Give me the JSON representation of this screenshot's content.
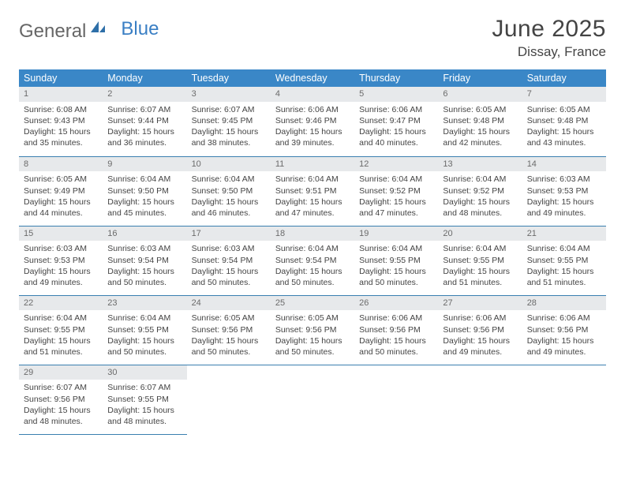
{
  "logo": {
    "part1": "General",
    "part2": "Blue"
  },
  "title": "June 2025",
  "location": "Dissay, France",
  "colors": {
    "header_bg": "#3a87c7",
    "header_fg": "#ffffff",
    "daynum_bg": "#e7e9eb",
    "daynum_fg": "#6b6b6b",
    "rule": "#3a7fb0",
    "text": "#444444",
    "logo_gray": "#666666",
    "logo_blue": "#3a7fc4",
    "background": "#ffffff"
  },
  "typography": {
    "title_fontsize": 30,
    "location_fontsize": 17,
    "header_fontsize": 12.5,
    "body_fontsize": 10.5,
    "daynum_fontsize": 11
  },
  "weekdays": [
    "Sunday",
    "Monday",
    "Tuesday",
    "Wednesday",
    "Thursday",
    "Friday",
    "Saturday"
  ],
  "weeks": [
    [
      {
        "n": "1",
        "sr": "Sunrise: 6:08 AM",
        "ss": "Sunset: 9:43 PM",
        "d1": "Daylight: 15 hours",
        "d2": "and 35 minutes."
      },
      {
        "n": "2",
        "sr": "Sunrise: 6:07 AM",
        "ss": "Sunset: 9:44 PM",
        "d1": "Daylight: 15 hours",
        "d2": "and 36 minutes."
      },
      {
        "n": "3",
        "sr": "Sunrise: 6:07 AM",
        "ss": "Sunset: 9:45 PM",
        "d1": "Daylight: 15 hours",
        "d2": "and 38 minutes."
      },
      {
        "n": "4",
        "sr": "Sunrise: 6:06 AM",
        "ss": "Sunset: 9:46 PM",
        "d1": "Daylight: 15 hours",
        "d2": "and 39 minutes."
      },
      {
        "n": "5",
        "sr": "Sunrise: 6:06 AM",
        "ss": "Sunset: 9:47 PM",
        "d1": "Daylight: 15 hours",
        "d2": "and 40 minutes."
      },
      {
        "n": "6",
        "sr": "Sunrise: 6:05 AM",
        "ss": "Sunset: 9:48 PM",
        "d1": "Daylight: 15 hours",
        "d2": "and 42 minutes."
      },
      {
        "n": "7",
        "sr": "Sunrise: 6:05 AM",
        "ss": "Sunset: 9:48 PM",
        "d1": "Daylight: 15 hours",
        "d2": "and 43 minutes."
      }
    ],
    [
      {
        "n": "8",
        "sr": "Sunrise: 6:05 AM",
        "ss": "Sunset: 9:49 PM",
        "d1": "Daylight: 15 hours",
        "d2": "and 44 minutes."
      },
      {
        "n": "9",
        "sr": "Sunrise: 6:04 AM",
        "ss": "Sunset: 9:50 PM",
        "d1": "Daylight: 15 hours",
        "d2": "and 45 minutes."
      },
      {
        "n": "10",
        "sr": "Sunrise: 6:04 AM",
        "ss": "Sunset: 9:50 PM",
        "d1": "Daylight: 15 hours",
        "d2": "and 46 minutes."
      },
      {
        "n": "11",
        "sr": "Sunrise: 6:04 AM",
        "ss": "Sunset: 9:51 PM",
        "d1": "Daylight: 15 hours",
        "d2": "and 47 minutes."
      },
      {
        "n": "12",
        "sr": "Sunrise: 6:04 AM",
        "ss": "Sunset: 9:52 PM",
        "d1": "Daylight: 15 hours",
        "d2": "and 47 minutes."
      },
      {
        "n": "13",
        "sr": "Sunrise: 6:04 AM",
        "ss": "Sunset: 9:52 PM",
        "d1": "Daylight: 15 hours",
        "d2": "and 48 minutes."
      },
      {
        "n": "14",
        "sr": "Sunrise: 6:03 AM",
        "ss": "Sunset: 9:53 PM",
        "d1": "Daylight: 15 hours",
        "d2": "and 49 minutes."
      }
    ],
    [
      {
        "n": "15",
        "sr": "Sunrise: 6:03 AM",
        "ss": "Sunset: 9:53 PM",
        "d1": "Daylight: 15 hours",
        "d2": "and 49 minutes."
      },
      {
        "n": "16",
        "sr": "Sunrise: 6:03 AM",
        "ss": "Sunset: 9:54 PM",
        "d1": "Daylight: 15 hours",
        "d2": "and 50 minutes."
      },
      {
        "n": "17",
        "sr": "Sunrise: 6:03 AM",
        "ss": "Sunset: 9:54 PM",
        "d1": "Daylight: 15 hours",
        "d2": "and 50 minutes."
      },
      {
        "n": "18",
        "sr": "Sunrise: 6:04 AM",
        "ss": "Sunset: 9:54 PM",
        "d1": "Daylight: 15 hours",
        "d2": "and 50 minutes."
      },
      {
        "n": "19",
        "sr": "Sunrise: 6:04 AM",
        "ss": "Sunset: 9:55 PM",
        "d1": "Daylight: 15 hours",
        "d2": "and 50 minutes."
      },
      {
        "n": "20",
        "sr": "Sunrise: 6:04 AM",
        "ss": "Sunset: 9:55 PM",
        "d1": "Daylight: 15 hours",
        "d2": "and 51 minutes."
      },
      {
        "n": "21",
        "sr": "Sunrise: 6:04 AM",
        "ss": "Sunset: 9:55 PM",
        "d1": "Daylight: 15 hours",
        "d2": "and 51 minutes."
      }
    ],
    [
      {
        "n": "22",
        "sr": "Sunrise: 6:04 AM",
        "ss": "Sunset: 9:55 PM",
        "d1": "Daylight: 15 hours",
        "d2": "and 51 minutes."
      },
      {
        "n": "23",
        "sr": "Sunrise: 6:04 AM",
        "ss": "Sunset: 9:55 PM",
        "d1": "Daylight: 15 hours",
        "d2": "and 50 minutes."
      },
      {
        "n": "24",
        "sr": "Sunrise: 6:05 AM",
        "ss": "Sunset: 9:56 PM",
        "d1": "Daylight: 15 hours",
        "d2": "and 50 minutes."
      },
      {
        "n": "25",
        "sr": "Sunrise: 6:05 AM",
        "ss": "Sunset: 9:56 PM",
        "d1": "Daylight: 15 hours",
        "d2": "and 50 minutes."
      },
      {
        "n": "26",
        "sr": "Sunrise: 6:06 AM",
        "ss": "Sunset: 9:56 PM",
        "d1": "Daylight: 15 hours",
        "d2": "and 50 minutes."
      },
      {
        "n": "27",
        "sr": "Sunrise: 6:06 AM",
        "ss": "Sunset: 9:56 PM",
        "d1": "Daylight: 15 hours",
        "d2": "and 49 minutes."
      },
      {
        "n": "28",
        "sr": "Sunrise: 6:06 AM",
        "ss": "Sunset: 9:56 PM",
        "d1": "Daylight: 15 hours",
        "d2": "and 49 minutes."
      }
    ],
    [
      {
        "n": "29",
        "sr": "Sunrise: 6:07 AM",
        "ss": "Sunset: 9:56 PM",
        "d1": "Daylight: 15 hours",
        "d2": "and 48 minutes."
      },
      {
        "n": "30",
        "sr": "Sunrise: 6:07 AM",
        "ss": "Sunset: 9:55 PM",
        "d1": "Daylight: 15 hours",
        "d2": "and 48 minutes."
      },
      null,
      null,
      null,
      null,
      null
    ]
  ]
}
